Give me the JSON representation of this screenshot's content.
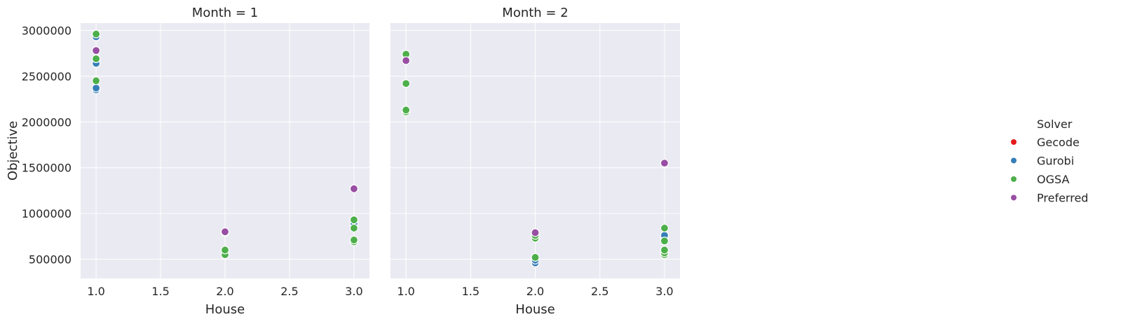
{
  "chart_data": {
    "type": "scatter",
    "xlabel": "House",
    "ylabel": "Objective",
    "xlim": [
      0.88,
      3.12
    ],
    "ylim": [
      290000,
      3080000
    ],
    "x_ticks": [
      1.0,
      1.5,
      2.0,
      2.5,
      3.0
    ],
    "x_tick_labels": [
      "1.0",
      "1.5",
      "2.0",
      "2.5",
      "3.0"
    ],
    "y_ticks": [
      500000,
      1000000,
      1500000,
      2000000,
      2500000,
      3000000
    ],
    "y_tick_labels": [
      "500000",
      "1000000",
      "1500000",
      "2000000",
      "2500000",
      "3000000"
    ],
    "grid": true,
    "legend": {
      "title": "Solver",
      "placement": "right",
      "entries": [
        {
          "name": "Gecode",
          "color": "#e41a1c"
        },
        {
          "name": "Gurobi",
          "color": "#377eb8"
        },
        {
          "name": "OGSA",
          "color": "#4daf4a"
        },
        {
          "name": "Preferred",
          "color": "#984ea3"
        }
      ]
    },
    "panels": [
      {
        "title": "Month = 1",
        "series": [
          {
            "name": "Gurobi",
            "points": [
              [
                1,
                2350000
              ],
              [
                1,
                2370000
              ],
              [
                1,
                2640000
              ],
              [
                1,
                2930000
              ],
              [
                2,
                800000
              ],
              [
                3,
                870000
              ],
              [
                3,
                890000
              ]
            ]
          },
          {
            "name": "OGSA",
            "points": [
              [
                1,
                2450000
              ],
              [
                1,
                2690000
              ],
              [
                1,
                2960000
              ],
              [
                2,
                550000
              ],
              [
                2,
                600000
              ],
              [
                2,
                790000
              ],
              [
                3,
                690000
              ],
              [
                3,
                710000
              ],
              [
                3,
                840000
              ],
              [
                3,
                930000
              ]
            ]
          },
          {
            "name": "Preferred",
            "points": [
              [
                1,
                2780000
              ],
              [
                2,
                800000
              ],
              [
                3,
                1270000
              ]
            ]
          }
        ]
      },
      {
        "title": "Month = 2",
        "series": [
          {
            "name": "Gurobi",
            "points": [
              [
                2,
                460000
              ],
              [
                2,
                490000
              ],
              [
                3,
                720000
              ],
              [
                3,
                760000
              ]
            ]
          },
          {
            "name": "OGSA",
            "points": [
              [
                1,
                2110000
              ],
              [
                1,
                2130000
              ],
              [
                1,
                2420000
              ],
              [
                1,
                2740000
              ],
              [
                2,
                520000
              ],
              [
                2,
                730000
              ],
              [
                2,
                760000
              ],
              [
                3,
                550000
              ],
              [
                3,
                570000
              ],
              [
                3,
                600000
              ],
              [
                3,
                700000
              ],
              [
                3,
                840000
              ]
            ]
          },
          {
            "name": "Preferred",
            "points": [
              [
                1,
                2670000
              ],
              [
                2,
                790000
              ],
              [
                3,
                1550000
              ]
            ]
          }
        ]
      }
    ]
  }
}
